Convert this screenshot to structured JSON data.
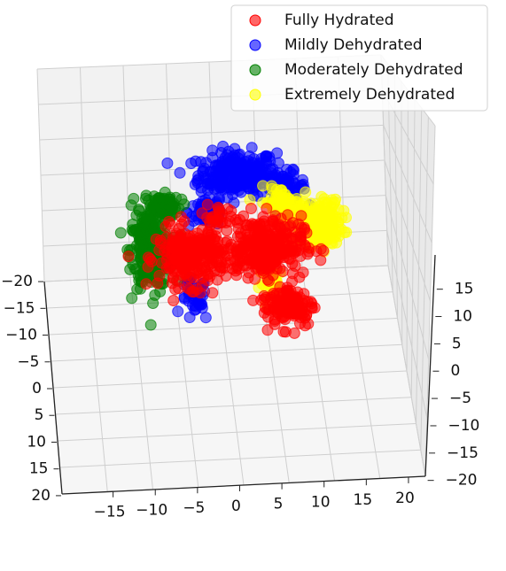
{
  "chart_data": {
    "type": "scatter",
    "projection": "3d",
    "title": "",
    "xlabel": "",
    "ylabel": "",
    "zlabel": "",
    "grid": true,
    "legend_position": "top-right",
    "axes": {
      "left_axis": {
        "ticks": [
          -20,
          -15,
          -10,
          -5,
          0,
          5,
          10,
          15,
          20
        ],
        "tick_labels": [
          "−20",
          "−15",
          "−10",
          "−5",
          "0",
          "5",
          "10",
          "15",
          "20"
        ],
        "range": [
          -22,
          22
        ]
      },
      "bottom_axis": {
        "ticks": [
          -15,
          -10,
          -5,
          0,
          5,
          10,
          15,
          20
        ],
        "tick_labels": [
          "−15",
          "−10",
          "−5",
          "0",
          "5",
          "10",
          "15",
          "20"
        ],
        "range": [
          -20,
          22
        ]
      },
      "right_axis": {
        "ticks": [
          -20,
          -15,
          -10,
          -5,
          0,
          5,
          10,
          15
        ],
        "tick_labels": [
          "−20",
          "−15",
          "−10",
          "−5",
          "0",
          "5",
          "10",
          "15"
        ],
        "range": [
          -22,
          19
        ]
      }
    },
    "series": [
      {
        "name": "Fully Hydrated",
        "color": "#ff0000",
        "clusters": [
          {
            "center": [
              -6,
              -1
            ],
            "spread": [
              5,
              4
            ],
            "count": 260
          },
          {
            "center": [
              5,
              0
            ],
            "spread": [
              6,
              4
            ],
            "count": 320
          },
          {
            "center": [
              8,
              -8
            ],
            "spread": [
              4,
              3
            ],
            "count": 120
          },
          {
            "center": [
              -1,
              4
            ],
            "spread": [
              2,
              2
            ],
            "count": 20
          }
        ]
      },
      {
        "name": "Mildly Dehydrated",
        "color": "#0000ff",
        "clusters": [
          {
            "center": [
              2,
              10
            ],
            "spread": [
              6,
              3
            ],
            "count": 260
          },
          {
            "center": [
              9,
              8
            ],
            "spread": [
              3,
              2
            ],
            "count": 60
          },
          {
            "center": [
              -3,
              5
            ],
            "spread": [
              3,
              2
            ],
            "count": 60
          },
          {
            "center": [
              -6,
              -7
            ],
            "spread": [
              2,
              3
            ],
            "count": 40
          }
        ]
      },
      {
        "name": "Moderately Dehydrated",
        "color": "#008000",
        "clusters": [
          {
            "center": [
              -12,
              0
            ],
            "spread": [
              3,
              5
            ],
            "count": 260
          },
          {
            "center": [
              -10,
              6
            ],
            "spread": [
              3,
              2
            ],
            "count": 70
          }
        ]
      },
      {
        "name": "Extremely Dehydrated",
        "color": "#ffff00",
        "clusters": [
          {
            "center": [
              13,
              3
            ],
            "spread": [
              4,
              3
            ],
            "count": 220
          },
          {
            "center": [
              8,
              6
            ],
            "spread": [
              3,
              2
            ],
            "count": 60
          },
          {
            "center": [
              6,
              -5
            ],
            "spread": [
              2,
              2
            ],
            "count": 30
          }
        ]
      }
    ]
  }
}
